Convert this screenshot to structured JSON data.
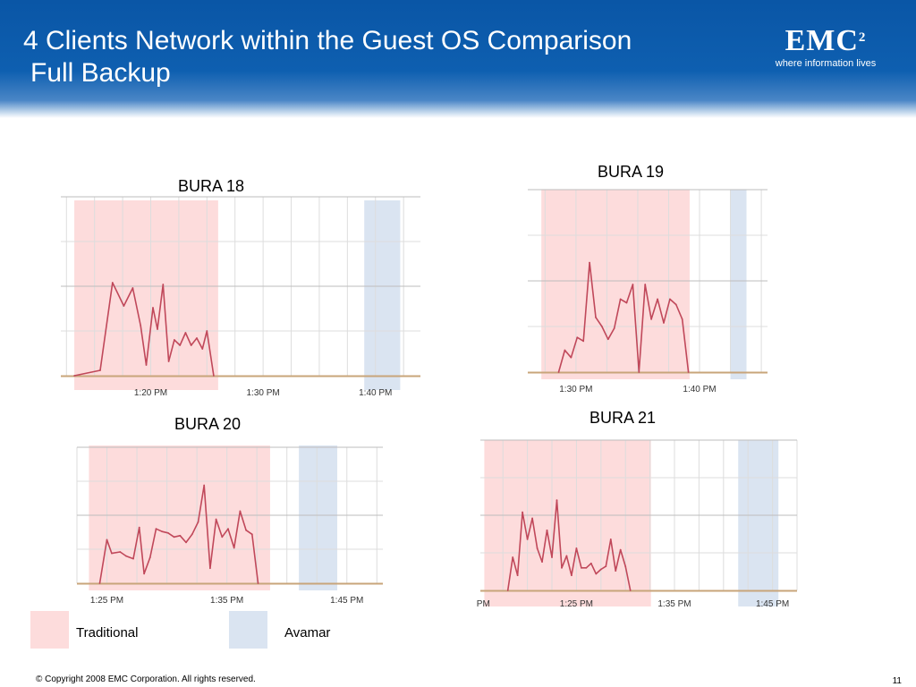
{
  "slide": {
    "title_line1": "4 Clients Network within the Guest OS Comparison",
    "title_line2": "Full Backup",
    "logo_word": "EMC",
    "logo_sup": "2",
    "logo_tagline": "where information lives",
    "footer": "© Copyright 2008 EMC Corporation. All rights reserved.",
    "page_number": "11"
  },
  "legend": [
    {
      "label": "Traditional",
      "color": "#fddcdc"
    },
    {
      "label": "Avamar",
      "color": "#dae4f1"
    }
  ],
  "colors": {
    "line": "#c0485a",
    "baseline": "#c8a57a",
    "grid": "#dddddd",
    "traditional_band": "#fddcdc",
    "avamar_band": "#dae4f1"
  },
  "chart_data": [
    {
      "type": "line",
      "title": "BURA 18",
      "x_unit": "minutes after 1:00 PM",
      "xlim": [
        12,
        44
      ],
      "ylim": [
        0,
        100
      ],
      "tick_labels": [
        {
          "x": 20,
          "label": "1:20 PM"
        },
        {
          "x": 30,
          "label": "1:30 PM"
        },
        {
          "x": 40,
          "label": "1:40 PM"
        }
      ],
      "bands": [
        {
          "kind": "Traditional",
          "from": 13.2,
          "to": 26
        },
        {
          "kind": "Avamar",
          "from": 39,
          "to": 42.2
        }
      ],
      "x": [
        13.2,
        15.5,
        16.6,
        17.6,
        18.4,
        19.1,
        19.6,
        20.2,
        20.6,
        21.1,
        21.6,
        22.1,
        22.6,
        23.1,
        23.6,
        24.1,
        24.6,
        25,
        25.6
      ],
      "y": [
        0,
        3,
        52,
        39,
        49,
        28,
        6,
        38,
        26,
        51,
        8,
        20,
        17,
        24,
        17,
        21,
        15,
        25,
        0
      ]
    },
    {
      "type": "line",
      "title": "BURA 19",
      "x_unit": "minutes after 1:00 PM",
      "xlim": [
        26.1,
        45.5
      ],
      "ylim": [
        0,
        100
      ],
      "tick_labels": [
        {
          "x": 30,
          "label": "1:30 PM"
        },
        {
          "x": 40,
          "label": "1:40 PM"
        }
      ],
      "bands": [
        {
          "kind": "Traditional",
          "from": 27.2,
          "to": 39.2
        },
        {
          "kind": "Avamar",
          "from": 42.5,
          "to": 43.8
        }
      ],
      "x": [
        28.6,
        29.1,
        29.6,
        30.1,
        30.6,
        31.1,
        31.6,
        32.1,
        32.6,
        33.1,
        33.6,
        34.1,
        34.6,
        35.1,
        35.6,
        36.1,
        36.6,
        37.1,
        37.6,
        38.1,
        38.6,
        39.1
      ],
      "y": [
        0,
        12,
        8,
        19,
        17,
        60,
        30,
        25,
        18,
        24,
        40,
        38,
        48,
        0,
        48,
        29,
        40,
        27,
        40,
        37,
        29,
        0
      ]
    },
    {
      "type": "line",
      "title": "BURA 20",
      "x_unit": "minutes after 1:00 PM",
      "xlim": [
        22.5,
        48
      ],
      "ylim": [
        0,
        100
      ],
      "tick_labels": [
        {
          "x": 25,
          "label": "1:25 PM"
        },
        {
          "x": 35,
          "label": "1:35 PM"
        },
        {
          "x": 45,
          "label": "1:45 PM"
        }
      ],
      "bands": [
        {
          "kind": "Traditional",
          "from": 23.5,
          "to": 38.6
        },
        {
          "kind": "Avamar",
          "from": 41,
          "to": 44.2
        }
      ],
      "x": [
        24.4,
        25,
        25.4,
        26.1,
        26.6,
        27.2,
        27.7,
        28.1,
        28.6,
        29.1,
        29.6,
        30.1,
        30.6,
        31.1,
        31.6,
        32.1,
        32.6,
        33.1,
        33.6,
        34.1,
        34.6,
        35.1,
        35.6,
        36.1,
        36.6,
        37.1,
        37.6
      ],
      "y": [
        0,
        32,
        22,
        23,
        20,
        18,
        41,
        7,
        19,
        40,
        38,
        37,
        34,
        35,
        30,
        36,
        45,
        72,
        11,
        47,
        34,
        40,
        26,
        53,
        39,
        36,
        0
      ]
    },
    {
      "type": "line",
      "title": "BURA 21",
      "x_unit": "minutes after 1:00 PM",
      "xlim": [
        15.2,
        47.5
      ],
      "ylim": [
        0,
        100
      ],
      "tick_labels": [
        {
          "x": 15.5,
          "label": "PM"
        },
        {
          "x": 25,
          "label": "1:25 PM"
        },
        {
          "x": 35,
          "label": "1:35 PM"
        },
        {
          "x": 45,
          "label": "1:45 PM"
        }
      ],
      "bands": [
        {
          "kind": "Traditional",
          "from": 15.6,
          "to": 32.6
        },
        {
          "kind": "Avamar",
          "from": 41.5,
          "to": 45.6
        }
      ],
      "x": [
        18,
        18.5,
        19,
        19.5,
        20,
        20.5,
        21,
        21.5,
        22,
        22.5,
        23,
        23.5,
        24,
        24.5,
        25,
        25.5,
        26,
        26.5,
        27,
        27.5,
        28,
        28.5,
        29,
        29.5,
        30,
        30.5
      ],
      "y": [
        0,
        22,
        10,
        52,
        34,
        48,
        28,
        19,
        40,
        22,
        60,
        15,
        23,
        10,
        28,
        15,
        15,
        18,
        11,
        14,
        16,
        34,
        13,
        27,
        16,
        0
      ]
    }
  ]
}
